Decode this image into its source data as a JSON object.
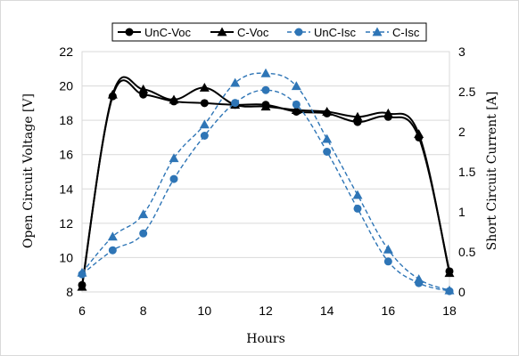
{
  "chart_data": {
    "type": "line",
    "xlabel": "Hours",
    "ylabel": "Open Circuit Voltage  [V]",
    "y2label": "Short Circuit Current  [A]",
    "x": [
      6,
      7,
      8,
      9,
      10,
      11,
      12,
      13,
      14,
      15,
      16,
      17,
      18
    ],
    "xlim": [
      6,
      18
    ],
    "ylim": [
      8,
      22
    ],
    "y2lim": [
      0,
      3
    ],
    "xticks": [
      "6",
      "8",
      "10",
      "12",
      "14",
      "16",
      "18"
    ],
    "yticks": [
      "8",
      "10",
      "12",
      "14",
      "16",
      "18",
      "20",
      "22"
    ],
    "y2ticks": [
      "0",
      "0.5",
      "1",
      "1.5",
      "2",
      "2.5",
      "3"
    ],
    "legend_position": "top",
    "grid": "horizontal",
    "series": [
      {
        "name": "UnC-Voc",
        "axis": "left",
        "color": "#000000",
        "marker": "circle",
        "dash": "solid",
        "values": [
          8.4,
          19.4,
          19.5,
          19.1,
          19.0,
          18.9,
          18.9,
          18.5,
          18.4,
          17.9,
          18.2,
          17.0,
          9.2
        ]
      },
      {
        "name": "C-Voc",
        "axis": "left",
        "color": "#000000",
        "marker": "triangle",
        "dash": "solid",
        "values": [
          8.3,
          19.5,
          19.8,
          19.2,
          19.9,
          18.9,
          18.8,
          18.6,
          18.5,
          18.2,
          18.4,
          17.2,
          9.1
        ]
      },
      {
        "name": "UnC-Isc",
        "axis": "right",
        "color": "#2e75b6",
        "marker": "circle",
        "dash": "dashed",
        "values": [
          0.22,
          0.52,
          0.73,
          1.41,
          1.95,
          2.36,
          2.52,
          2.34,
          1.75,
          1.04,
          0.38,
          0.11,
          0.01
        ]
      },
      {
        "name": "C-Isc",
        "axis": "right",
        "color": "#2e75b6",
        "marker": "triangle",
        "dash": "dashed",
        "values": [
          0.24,
          0.69,
          0.97,
          1.67,
          2.09,
          2.61,
          2.73,
          2.57,
          1.91,
          1.21,
          0.53,
          0.16,
          0.02
        ]
      }
    ]
  }
}
